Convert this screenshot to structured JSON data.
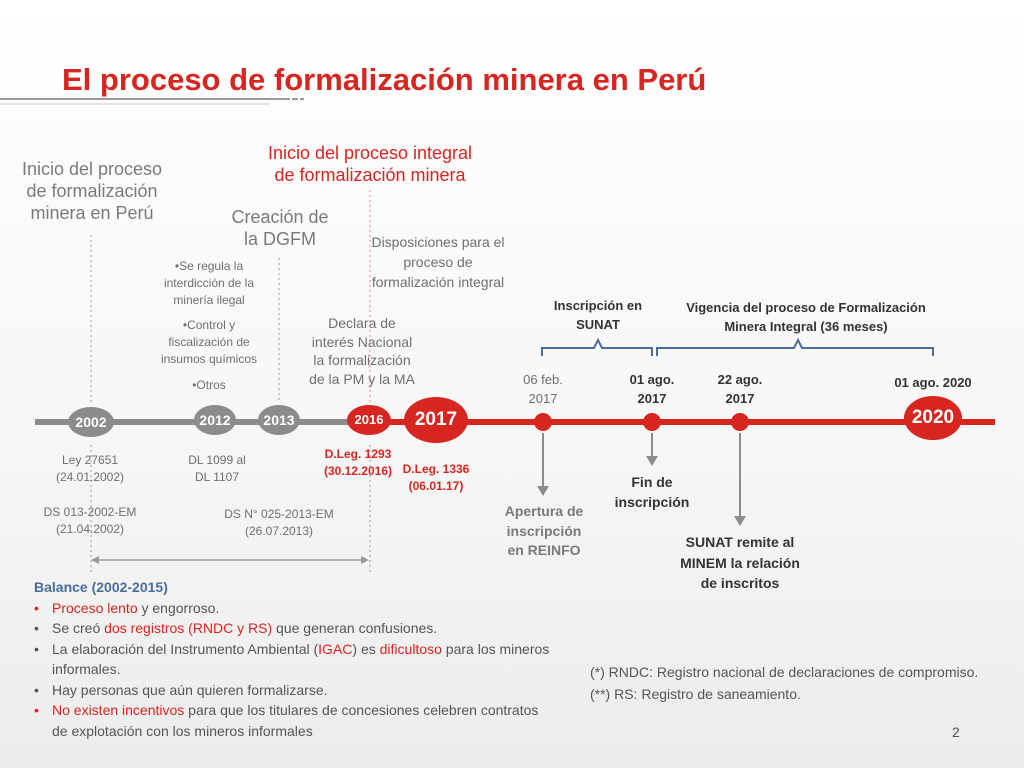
{
  "title": "El proceso de formalización minera en Perú",
  "slide_number": "2",
  "headings": {
    "inicio": [
      "Inicio del proceso",
      "de formalización",
      "minera en Perú"
    ],
    "integral": [
      "Inicio del proceso integral",
      "de formalización minera"
    ],
    "dgfm": [
      "Creación de",
      "la DGFM"
    ],
    "disposiciones": [
      "Disposiciones para el",
      "proceso de",
      "formalización integral"
    ],
    "inscripcion_sunat": [
      "Inscripción en",
      "SUNAT"
    ],
    "vigencia": [
      "Vigencia del proceso de Formalización",
      "Minera Integral  (36 meses)"
    ]
  },
  "notes_2012": {
    "a": [
      "•Se regula la",
      "interdicción de la",
      "minería ilegal"
    ],
    "b": [
      "•Control y",
      "fiscalización de",
      "insumos químicos"
    ],
    "c": "•Otros"
  },
  "declara": [
    "Declara de",
    "interés Nacional",
    "la formalización",
    "de la PM y la MA"
  ],
  "years": {
    "y2002": "2002",
    "y2012": "2012",
    "y2013": "2013",
    "y2016": "2016",
    "y2017": "2017",
    "y2020": "2020"
  },
  "dates": {
    "feb06": [
      "06 feb.",
      "2017"
    ],
    "ago01": [
      "01 ago.",
      "2017"
    ],
    "ago22": [
      "22 ago.",
      "2017"
    ],
    "ago2020": "01 ago. 2020"
  },
  "below": {
    "ley": [
      "Ley 27651",
      "(24.01.2002)"
    ],
    "ds013": [
      "DS 013-2002-EM",
      "(21.04.2002)"
    ],
    "dl1099": [
      "DL 1099 al",
      "DL 1107"
    ],
    "ds025": [
      "DS N° 025-2013-EM",
      "(26.07.2013)"
    ],
    "dleg1293": [
      "D.Leg. 1293",
      "(30.12.2016)"
    ],
    "dleg1336": [
      "D.Leg. 1336",
      "(06.01.17)"
    ]
  },
  "events": {
    "apertura": [
      "Apertura de",
      "inscripción",
      "en  REINFO"
    ],
    "fin": [
      "Fin de",
      "inscripción"
    ],
    "sunat": [
      "SUNAT remite al",
      "MINEM  la relación",
      "de inscritos"
    ]
  },
  "balance": {
    "title": "Balance (2002-2015)",
    "items": [
      {
        "red": "Proceso lento",
        "rest": " y engorroso."
      },
      {
        "pre": "Se creó ",
        "red": "dos registros (RNDC y RS)",
        "rest": " que generan confusiones."
      },
      {
        "pre": "La elaboración del Instrumento Ambiental (",
        "red": "IGAC",
        "mid": ") es ",
        "red2": "dificultoso",
        "rest": " para los mineros informales."
      },
      {
        "pre": "Hay personas que aún quieren formalizarse."
      },
      {
        "red": "No existen incentivos",
        "rest": " para que los titulares de concesiones celebren contratos  de explotación con los mineros informales"
      }
    ]
  },
  "footnotes": [
    "(*) RNDC: Registro nacional de declaraciones de compromiso.",
    "(**) RS: Registro de saneamiento."
  ],
  "colors": {
    "accent": "#d7261f",
    "grey": "#8c8c8c",
    "bracket": "#4a6d9c"
  }
}
